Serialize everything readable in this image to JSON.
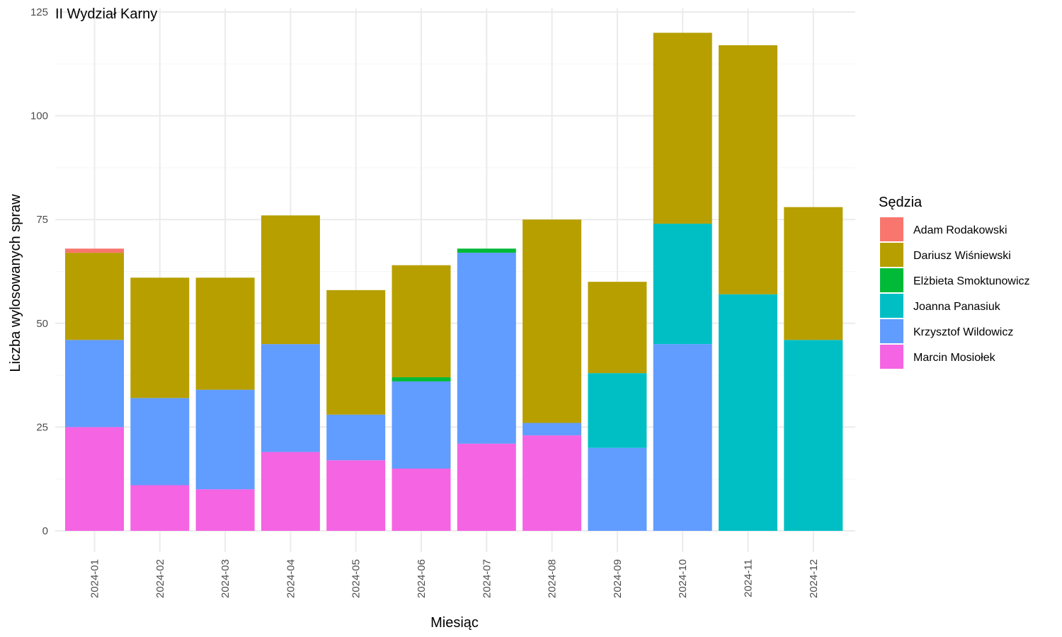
{
  "chart_data": {
    "type": "bar",
    "stacked": true,
    "title": "II Wydział Karny",
    "xlabel": "Miesiąc",
    "ylabel": "Liczba wylosowanych spraw",
    "ylim": [
      0,
      125
    ],
    "yticks": [
      0,
      25,
      50,
      75,
      100,
      125
    ],
    "grid": true,
    "legend_title": "Sędzia",
    "legend_position": "right",
    "categories": [
      "2024-01",
      "2024-02",
      "2024-03",
      "2024-04",
      "2024-05",
      "2024-06",
      "2024-07",
      "2024-08",
      "2024-09",
      "2024-10",
      "2024-11",
      "2024-12"
    ],
    "series": [
      {
        "name": "Marcin Mosiołek",
        "color": "#F564E3",
        "values": [
          25,
          11,
          10,
          19,
          17,
          15,
          21,
          23,
          0,
          0,
          0,
          0
        ]
      },
      {
        "name": "Krzysztof Wildowicz",
        "color": "#619CFF",
        "values": [
          21,
          21,
          24,
          26,
          11,
          21,
          46,
          3,
          20,
          45,
          0,
          0
        ]
      },
      {
        "name": "Joanna Panasiuk",
        "color": "#00BFC4",
        "values": [
          0,
          0,
          0,
          0,
          0,
          0,
          0,
          0,
          18,
          29,
          57,
          46
        ]
      },
      {
        "name": "Elżbieta Smoktunowicz",
        "color": "#00BA38",
        "values": [
          0,
          0,
          0,
          0,
          0,
          1,
          1,
          0,
          0,
          0,
          0,
          0
        ]
      },
      {
        "name": "Dariusz Wiśniewski",
        "color": "#B79F00",
        "values": [
          21,
          29,
          27,
          31,
          30,
          27,
          0,
          49,
          22,
          46,
          60,
          32
        ]
      },
      {
        "name": "Adam Rodakowski",
        "color": "#F8766D",
        "values": [
          1,
          0,
          0,
          0,
          0,
          0,
          0,
          0,
          0,
          0,
          0,
          0
        ]
      }
    ],
    "legend_order": [
      "Adam Rodakowski",
      "Dariusz Wiśniewski",
      "Elżbieta Smoktunowicz",
      "Joanna Panasiuk",
      "Krzysztof Wildowicz",
      "Marcin Mosiołek"
    ]
  }
}
